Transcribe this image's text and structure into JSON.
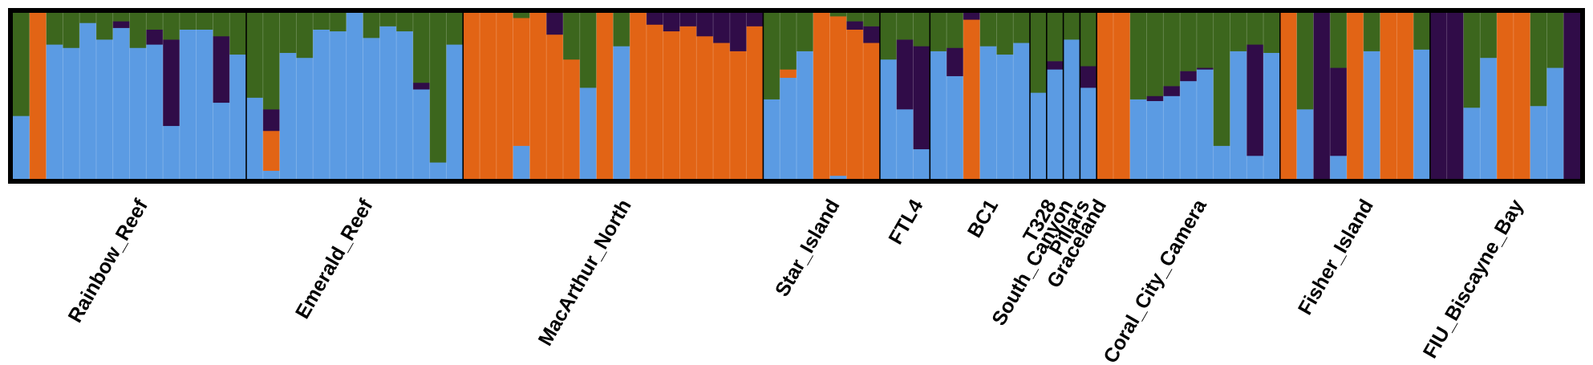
{
  "chart_data": {
    "type": "stacked_bar",
    "title": "",
    "xlabel": "",
    "ylabel": "",
    "ylim": [
      0,
      1
    ],
    "grid": false,
    "legend": "none",
    "series": [
      {
        "color": "#5b9be3"
      },
      {
        "color": "#e26415"
      },
      {
        "color": "#300c48"
      },
      {
        "color": "#3c661d"
      }
    ],
    "populations": [
      {
        "label": "Rainbow_Reef",
        "samples": [
          [
            0.38,
            0.0,
            0.0,
            0.62
          ],
          [
            0.0,
            1.0,
            0.0,
            0.0
          ],
          [
            0.81,
            0.0,
            0.0,
            0.19
          ],
          [
            0.79,
            0.0,
            0.0,
            0.21
          ],
          [
            0.94,
            0.0,
            0.0,
            0.06
          ],
          [
            0.84,
            0.0,
            0.0,
            0.16
          ],
          [
            0.91,
            0.0,
            0.04,
            0.05
          ],
          [
            0.79,
            0.0,
            0.0,
            0.21
          ],
          [
            0.81,
            0.0,
            0.09,
            0.1
          ],
          [
            0.32,
            0.0,
            0.52,
            0.16
          ],
          [
            0.9,
            0.0,
            0.0,
            0.1
          ],
          [
            0.9,
            0.0,
            0.0,
            0.1
          ],
          [
            0.46,
            0.0,
            0.4,
            0.14
          ],
          [
            0.75,
            0.0,
            0.0,
            0.25
          ]
        ]
      },
      {
        "label": "Emerald_Reef",
        "samples": [
          [
            0.49,
            0.0,
            0.0,
            0.51
          ],
          [
            0.05,
            0.24,
            0.13,
            0.58
          ],
          [
            0.76,
            0.0,
            0.0,
            0.24
          ],
          [
            0.73,
            0.0,
            0.0,
            0.27
          ],
          [
            0.9,
            0.0,
            0.0,
            0.1
          ],
          [
            0.89,
            0.0,
            0.0,
            0.11
          ],
          [
            1.0,
            0.0,
            0.0,
            0.0
          ],
          [
            0.85,
            0.0,
            0.0,
            0.15
          ],
          [
            0.92,
            0.0,
            0.0,
            0.08
          ],
          [
            0.89,
            0.0,
            0.0,
            0.11
          ],
          [
            0.54,
            0.0,
            0.04,
            0.42
          ],
          [
            0.1,
            0.0,
            0.0,
            0.9
          ],
          [
            0.81,
            0.0,
            0.0,
            0.19
          ]
        ]
      },
      {
        "label": "MacArthur_North",
        "samples": [
          [
            0.0,
            1.0,
            0.0,
            0.0
          ],
          [
            0.0,
            1.0,
            0.0,
            0.0
          ],
          [
            0.0,
            1.0,
            0.0,
            0.0
          ],
          [
            0.2,
            0.77,
            0.0,
            0.03
          ],
          [
            0.0,
            1.0,
            0.0,
            0.0
          ],
          [
            0.0,
            0.87,
            0.13,
            0.0
          ],
          [
            0.0,
            0.72,
            0.0,
            0.28
          ],
          [
            0.55,
            0.0,
            0.0,
            0.45
          ],
          [
            0.0,
            1.0,
            0.0,
            0.0
          ],
          [
            0.8,
            0.0,
            0.0,
            0.2
          ],
          [
            0.0,
            1.0,
            0.0,
            0.0
          ],
          [
            0.0,
            0.93,
            0.07,
            0.0
          ],
          [
            0.0,
            0.89,
            0.11,
            0.0
          ],
          [
            0.0,
            0.92,
            0.08,
            0.0
          ],
          [
            0.0,
            0.86,
            0.14,
            0.0
          ],
          [
            0.0,
            0.82,
            0.18,
            0.0
          ],
          [
            0.0,
            0.77,
            0.23,
            0.0
          ],
          [
            0.0,
            0.92,
            0.08,
            0.0
          ]
        ]
      },
      {
        "label": "Star_Island",
        "samples": [
          [
            0.48,
            0.0,
            0.0,
            0.52
          ],
          [
            0.61,
            0.05,
            0.0,
            0.34
          ],
          [
            0.77,
            0.0,
            0.0,
            0.23
          ],
          [
            0.0,
            1.0,
            0.0,
            0.0
          ],
          [
            0.02,
            0.96,
            0.0,
            0.02
          ],
          [
            0.0,
            0.9,
            0.05,
            0.05
          ],
          [
            0.0,
            0.82,
            0.1,
            0.08
          ]
        ]
      },
      {
        "label": "FTL4",
        "samples": [
          [
            0.72,
            0.0,
            0.0,
            0.28
          ],
          [
            0.42,
            0.0,
            0.42,
            0.16
          ],
          [
            0.18,
            0.0,
            0.62,
            0.2
          ]
        ]
      },
      {
        "label": "BC1",
        "samples": [
          [
            0.77,
            0.0,
            0.0,
            0.23
          ],
          [
            0.62,
            0.0,
            0.17,
            0.21
          ],
          [
            0.0,
            0.96,
            0.04,
            0.0
          ],
          [
            0.8,
            0.0,
            0.0,
            0.2
          ],
          [
            0.75,
            0.0,
            0.0,
            0.25
          ],
          [
            0.82,
            0.0,
            0.0,
            0.18
          ]
        ]
      },
      {
        "label": "T328",
        "samples": [
          [
            0.52,
            0.0,
            0.0,
            0.48
          ]
        ]
      },
      {
        "label": "South_Canyon",
        "samples": [
          [
            0.66,
            0.0,
            0.05,
            0.29
          ]
        ]
      },
      {
        "label": "Pillars",
        "samples": [
          [
            0.84,
            0.0,
            0.0,
            0.16
          ]
        ]
      },
      {
        "label": "Graceland",
        "samples": [
          [
            0.55,
            0.0,
            0.13,
            0.32
          ]
        ]
      },
      {
        "label": "Coral_City_Camera",
        "samples": [
          [
            0.0,
            1.0,
            0.0,
            0.0
          ],
          [
            0.0,
            1.0,
            0.0,
            0.0
          ],
          [
            0.48,
            0.0,
            0.0,
            0.52
          ],
          [
            0.47,
            0.0,
            0.03,
            0.5
          ],
          [
            0.5,
            0.0,
            0.06,
            0.44
          ],
          [
            0.59,
            0.0,
            0.06,
            0.35
          ],
          [
            0.66,
            0.0,
            0.01,
            0.33
          ],
          [
            0.2,
            0.0,
            0.0,
            0.8
          ],
          [
            0.77,
            0.0,
            0.0,
            0.23
          ],
          [
            0.14,
            0.0,
            0.67,
            0.19
          ],
          [
            0.76,
            0.0,
            0.0,
            0.24
          ]
        ]
      },
      {
        "label": "Fisher_Island",
        "samples": [
          [
            0.0,
            1.0,
            0.0,
            0.0
          ],
          [
            0.42,
            0.0,
            0.0,
            0.58
          ],
          [
            0.0,
            0.0,
            1.0,
            0.0
          ],
          [
            0.14,
            0.0,
            0.53,
            0.33
          ],
          [
            0.0,
            1.0,
            0.0,
            0.0
          ],
          [
            0.77,
            0.0,
            0.0,
            0.23
          ],
          [
            0.0,
            1.0,
            0.0,
            0.0
          ],
          [
            0.0,
            1.0,
            0.0,
            0.0
          ],
          [
            0.78,
            0.0,
            0.0,
            0.22
          ]
        ]
      },
      {
        "label": "FIU_Biscayne_Bay",
        "samples": [
          [
            0.0,
            0.0,
            1.0,
            0.0
          ],
          [
            0.0,
            0.0,
            1.0,
            0.0
          ],
          [
            0.43,
            0.0,
            0.0,
            0.57
          ],
          [
            0.73,
            0.0,
            0.0,
            0.27
          ],
          [
            0.0,
            1.0,
            0.0,
            0.0
          ],
          [
            0.0,
            1.0,
            0.0,
            0.0
          ],
          [
            0.44,
            0.0,
            0.0,
            0.56
          ],
          [
            0.67,
            0.0,
            0.0,
            0.33
          ],
          [
            0.0,
            0.0,
            1.0,
            0.0
          ]
        ]
      }
    ]
  }
}
